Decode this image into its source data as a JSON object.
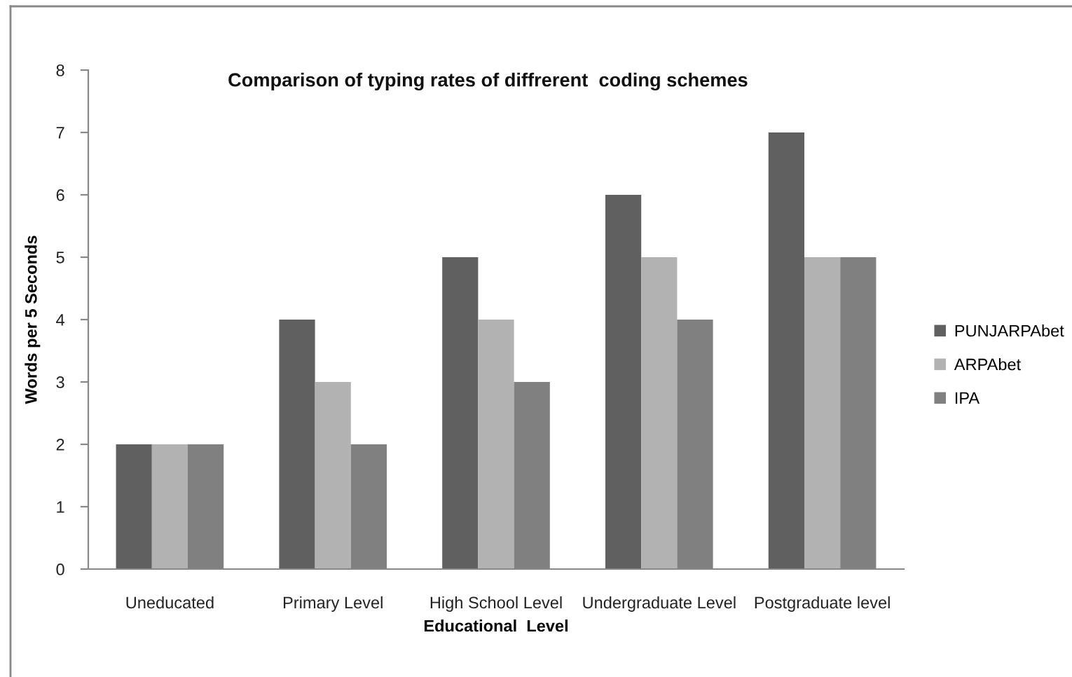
{
  "chart_data": {
    "type": "bar",
    "title": "Comparison of typing rates of diffrerent  coding schemes",
    "xlabel": "Educational  Level",
    "ylabel": "Words per 5 Seconds",
    "categories": [
      "Uneducated",
      "Primary Level",
      "High School Level",
      "Undergraduate Level",
      "Postgraduate level"
    ],
    "series": [
      {
        "name": "PUNJARPAbet",
        "color": "#606060",
        "values": [
          2,
          4,
          5,
          6,
          7
        ]
      },
      {
        "name": "ARPAbet",
        "color": "#b2b2b2",
        "values": [
          2,
          3,
          4,
          5,
          5
        ]
      },
      {
        "name": "IPA",
        "color": "#808080",
        "values": [
          2,
          2,
          3,
          4,
          5
        ]
      }
    ],
    "ylim": [
      0,
      8
    ],
    "yticks": [
      0,
      1,
      2,
      3,
      4,
      5,
      6,
      7,
      8
    ],
    "grid": false,
    "legend": "right"
  }
}
